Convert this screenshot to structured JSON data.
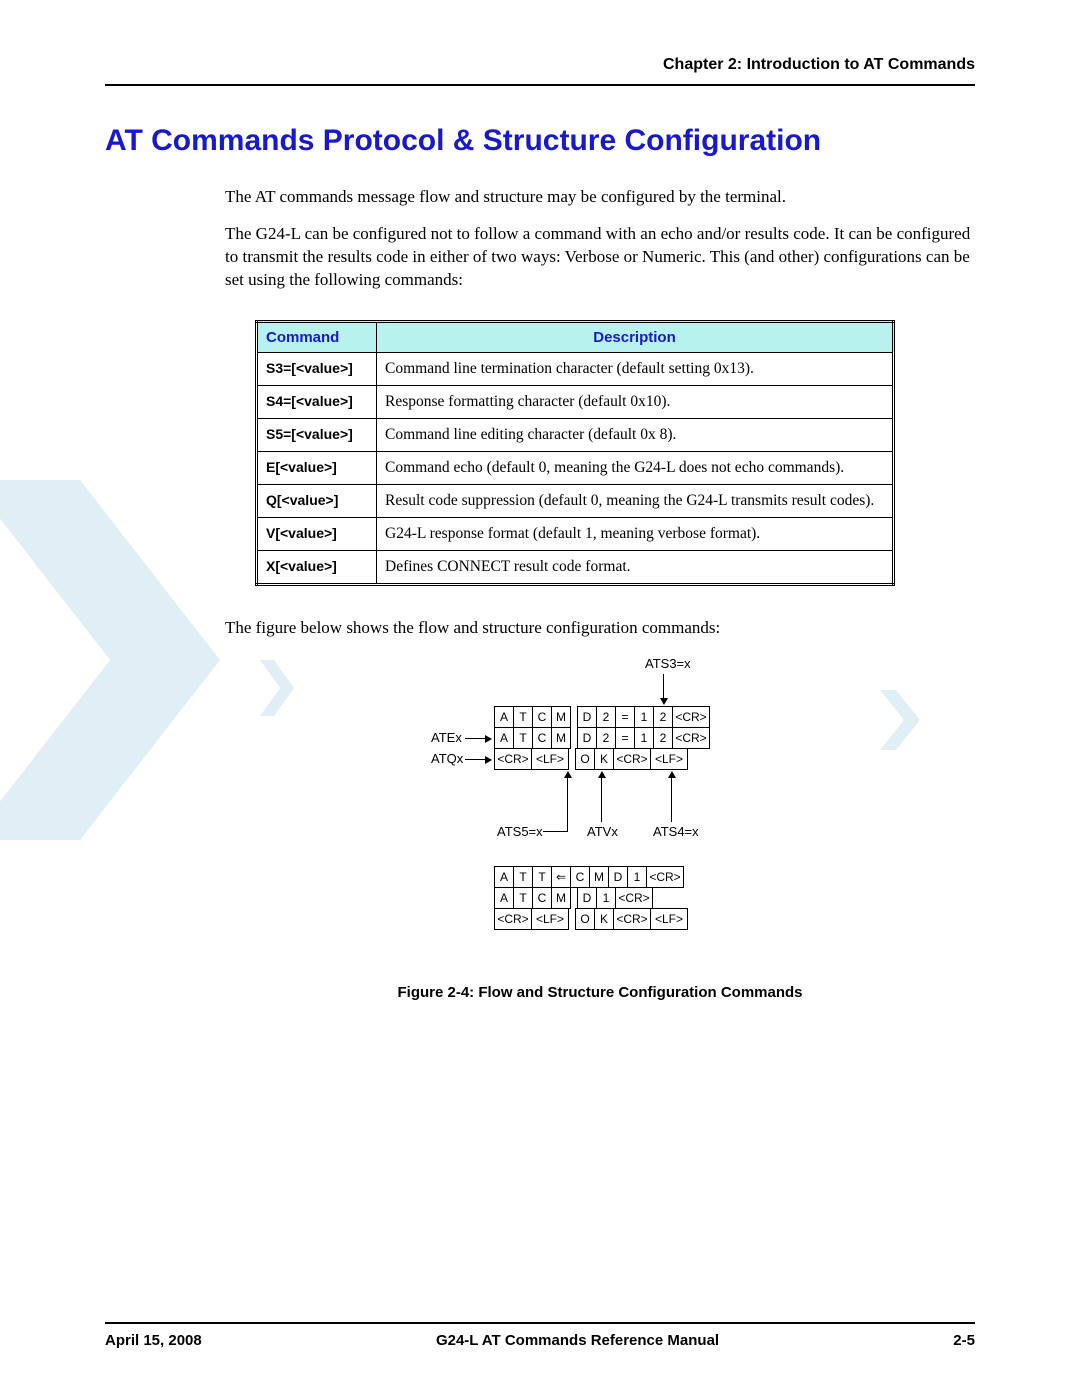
{
  "header": {
    "chapter": "Chapter 2:  Introduction to AT Commands"
  },
  "title": "AT Commands Protocol & Structure Configuration",
  "paragraphs": {
    "p1": "The AT commands message flow and structure may be configured by the terminal.",
    "p2": "The G24-L can be configured not to follow a command with an echo and/or results code. It can be configured to transmit the results code in either of two ways: Verbose or Numeric. This (and other) configurations can be set using the following commands:"
  },
  "table": {
    "header_bg": "#b8f2ee",
    "header_fg": "#1818cc",
    "columns": {
      "command": "Command",
      "description": "Description"
    },
    "rows": [
      {
        "cmd": "S3=[<value>]",
        "desc": "Command line termination character (default setting 0x13)."
      },
      {
        "cmd": "S4=[<value>]",
        "desc": "Response formatting character (default 0x10)."
      },
      {
        "cmd": "S5=[<value>]",
        "desc": "Command line editing character (default 0x 8)."
      },
      {
        "cmd": "E[<value>]",
        "desc": "Command echo (default 0, meaning the G24-L does not echo commands)."
      },
      {
        "cmd": "Q[<value>]",
        "desc": "Result code suppression (default 0, meaning the G24-L transmits result codes)."
      },
      {
        "cmd": "V[<value>]",
        "desc": "G24-L response format (default 1, meaning verbose format)."
      },
      {
        "cmd": "X[<value>]",
        "desc": "Defines CONNECT result code format."
      }
    ]
  },
  "figure": {
    "intro": "The figure below shows the flow and structure configuration commands:",
    "caption": "Figure 2-4: Flow and Structure Configuration Commands",
    "labels": {
      "ats3": "ATS3=x",
      "atex": "ATEx",
      "atqx": "ATQx",
      "ats5": "ATS5=x",
      "atvx": "ATVx",
      "ats4": "ATS4=x"
    },
    "top_block": {
      "row1": [
        "A",
        "T",
        "C",
        "M",
        "",
        "D",
        "2",
        "=",
        "1",
        "2",
        "<CR>"
      ],
      "row2": [
        "A",
        "T",
        "C",
        "M",
        "",
        "D",
        "2",
        "=",
        "1",
        "2",
        "<CR>"
      ],
      "row3": [
        "<CR>",
        "<LF>",
        "",
        "O",
        "K",
        "<CR>",
        "<LF>"
      ]
    },
    "bottom_block": {
      "row1": [
        "A",
        "T",
        "T",
        "⇐",
        "C",
        "M",
        "D",
        "1",
        "<CR>"
      ],
      "row2": [
        "A",
        "T",
        "C",
        "M",
        "",
        "D",
        "1",
        "<CR>"
      ],
      "row3": [
        "<CR>",
        "<LF>",
        "",
        "O",
        "K",
        "<CR>",
        "<LF>"
      ]
    }
  },
  "footer": {
    "date": "April 15, 2008",
    "manual": "G24-L AT Commands Reference Manual",
    "page": "2-5"
  },
  "colors": {
    "title": "#1818cc",
    "watermark": "#a9cfe8"
  }
}
